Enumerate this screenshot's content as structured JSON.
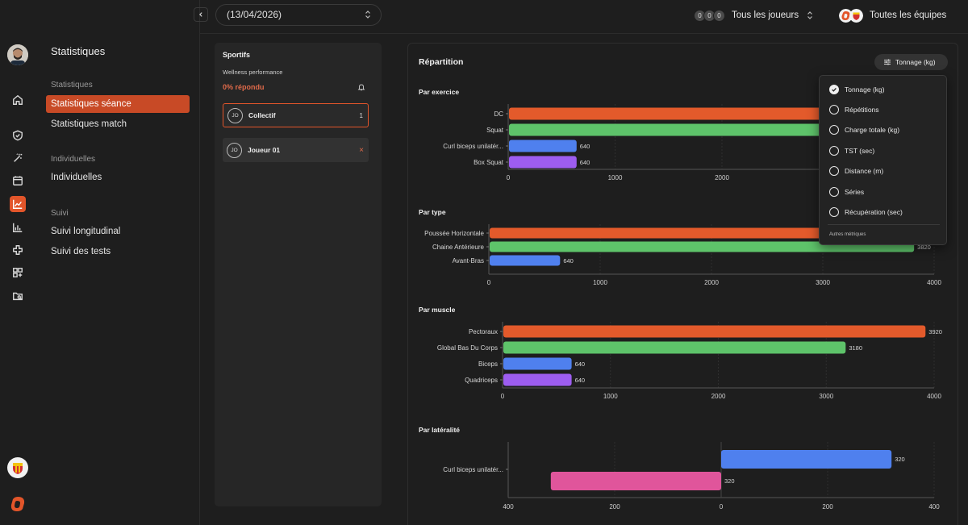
{
  "sidebar": {
    "title": "Statistiques",
    "sections": [
      {
        "label": "Statistiques",
        "items": [
          "Statistiques séance",
          "Statistiques match"
        ]
      },
      {
        "label": "Individuelles",
        "items": [
          "Individuelles"
        ]
      },
      {
        "label": "Suivi",
        "items": [
          "Suivi longitudinal",
          "Suivi des tests"
        ]
      }
    ],
    "active_item": "Statistiques séance"
  },
  "header": {
    "date": "(13/04/2026)",
    "players_label": "Tous les joueurs",
    "player_avatars": [
      "0",
      "0",
      "0"
    ],
    "teams_label": "Toutes les équipes"
  },
  "athletes_panel": {
    "title": "Sportifs",
    "subtitle": "Wellness performance",
    "response_rate": "0% répondu",
    "athletes": [
      {
        "initials": "JO",
        "name": "Collectif",
        "right": "1",
        "selected": true
      },
      {
        "initials": "JO",
        "name": "Joueur 01",
        "right": "×",
        "selected": false
      }
    ]
  },
  "main": {
    "title": "Répartition",
    "metric_button": "Tonnage (kg)"
  },
  "dropdown": {
    "items": [
      {
        "label": "Tonnage (kg)",
        "checked": true
      },
      {
        "label": "Répétitions",
        "checked": false
      },
      {
        "label": "Charge totale (kg)",
        "checked": false
      },
      {
        "label": "TST (sec)",
        "checked": false
      },
      {
        "label": "Distance (m)",
        "checked": false
      },
      {
        "label": "Séries",
        "checked": false
      },
      {
        "label": "Récupération (sec)",
        "checked": false
      }
    ],
    "footer": "Autres métriques"
  },
  "colors": {
    "orange": "#e35a2b",
    "green": "#5ec36a",
    "blue": "#4f80ee",
    "purple": "#9d5df0",
    "pink": "#e0559b"
  },
  "chart_data": [
    {
      "type": "bar",
      "orientation": "horizontal",
      "title": "Par exercice",
      "categories": [
        "DC",
        "Squat",
        "Curl biceps unilatér...",
        "Box Squat"
      ],
      "values": [
        3920,
        3180,
        640,
        640
      ],
      "value_labels": [
        "",
        "",
        "640",
        "640"
      ],
      "bar_colors": [
        "#e35a2b",
        "#5ec36a",
        "#4f80ee",
        "#9d5df0"
      ],
      "xlim": [
        0,
        4000
      ],
      "xticks": [
        "0",
        "1000",
        "2000"
      ],
      "grid": true
    },
    {
      "type": "bar",
      "orientation": "horizontal",
      "title": "Par type",
      "categories": [
        "Poussée Horizontale",
        "Chaine Antérieure",
        "Avant-Bras"
      ],
      "values": [
        3920,
        3820,
        640
      ],
      "value_labels": [
        "",
        "3820",
        "640"
      ],
      "bar_colors": [
        "#e35a2b",
        "#5ec36a",
        "#4f80ee"
      ],
      "xlim": [
        0,
        4000
      ],
      "xticks": [
        "0",
        "1000",
        "2000",
        "3000",
        "4000"
      ],
      "grid": true
    },
    {
      "type": "bar",
      "orientation": "horizontal",
      "title": "Par muscle",
      "categories": [
        "Pectoraux",
        "Global Bas Du Corps",
        "Biceps",
        "Quadriceps"
      ],
      "values": [
        3920,
        3180,
        640,
        640
      ],
      "value_labels": [
        "3920",
        "3180",
        "640",
        "640"
      ],
      "bar_colors": [
        "#e35a2b",
        "#5ec36a",
        "#4f80ee",
        "#9d5df0"
      ],
      "xlim": [
        0,
        4000
      ],
      "xticks": [
        "0",
        "1000",
        "2000",
        "3000",
        "4000"
      ],
      "grid": true
    },
    {
      "type": "bar",
      "orientation": "horizontal-diverging",
      "title": "Par latéralité",
      "categories": [
        "Curl biceps unilatér..."
      ],
      "series": [
        {
          "values": [
            320
          ],
          "direction": "right",
          "color": "#4f80ee",
          "value_labels": [
            "320"
          ]
        },
        {
          "values": [
            -320
          ],
          "direction": "left",
          "color": "#e0559b",
          "value_labels": [
            "320"
          ]
        }
      ],
      "xlim": [
        -400,
        400
      ],
      "xticks": [
        "400",
        "200",
        "0",
        "200",
        "400"
      ],
      "grid": true
    }
  ]
}
